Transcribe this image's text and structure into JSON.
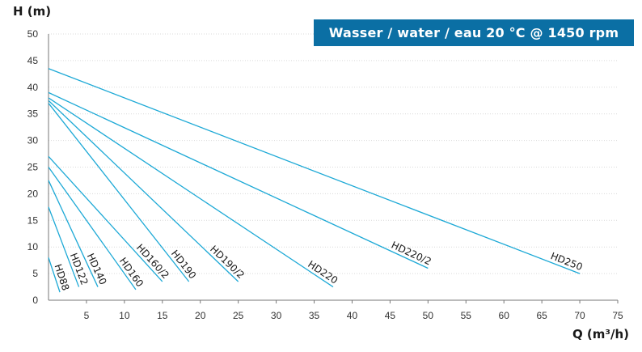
{
  "colors": {
    "curve": "#1da9d6",
    "banner": "#0b6fa4",
    "grid": "#d9d9d9",
    "axis": "#777777"
  },
  "banner": {
    "text": "Wasser  /  water  /  eau 20  °C  @  1450 rpm"
  },
  "chart_data": {
    "type": "line",
    "xlabel": "Q (m³/h)",
    "ylabel": "H (m)",
    "xlim": [
      0,
      75
    ],
    "ylim": [
      0,
      50
    ],
    "xticks": [
      5,
      10,
      15,
      20,
      25,
      30,
      35,
      40,
      45,
      50,
      55,
      60,
      65,
      70,
      75
    ],
    "yticks": [
      0,
      5,
      10,
      15,
      20,
      25,
      30,
      35,
      40,
      45,
      50
    ],
    "grid": false,
    "series": [
      {
        "name": "HD88",
        "points": [
          [
            0,
            8.0
          ],
          [
            1.5,
            1.5
          ]
        ]
      },
      {
        "name": "HD122",
        "points": [
          [
            0,
            17.5
          ],
          [
            4.0,
            2.5
          ]
        ]
      },
      {
        "name": "HD140",
        "points": [
          [
            0,
            22.5
          ],
          [
            6.5,
            2.5
          ]
        ]
      },
      {
        "name": "HD160",
        "points": [
          [
            0,
            25.0
          ],
          [
            11.5,
            2.0
          ]
        ]
      },
      {
        "name": "HD160/2",
        "points": [
          [
            0,
            27.0
          ],
          [
            15.0,
            3.5
          ]
        ]
      },
      {
        "name": "HD190",
        "points": [
          [
            0,
            37.0
          ],
          [
            18.5,
            3.5
          ]
        ]
      },
      {
        "name": "HD190/2",
        "points": [
          [
            0,
            37.5
          ],
          [
            25.0,
            3.5
          ]
        ]
      },
      {
        "name": "HD220",
        "points": [
          [
            0,
            38.0
          ],
          [
            37.5,
            2.5
          ]
        ]
      },
      {
        "name": "HD220/2",
        "points": [
          [
            0,
            39.0
          ],
          [
            50.0,
            6.0
          ]
        ]
      },
      {
        "name": "HD250",
        "points": [
          [
            0,
            43.5
          ],
          [
            70.0,
            5.0
          ]
        ]
      }
    ]
  }
}
